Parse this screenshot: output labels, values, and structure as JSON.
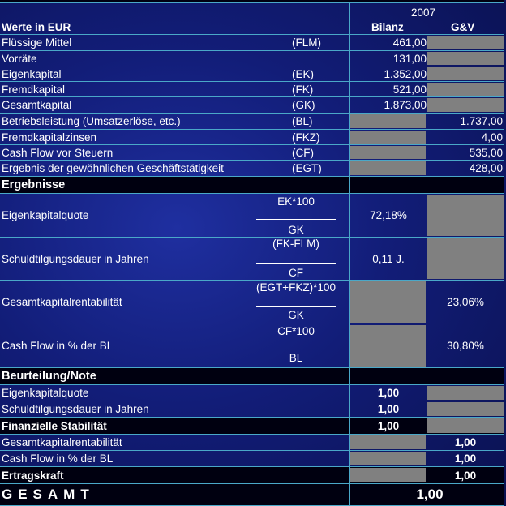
{
  "header": {
    "year": "2007",
    "units_label": "Werte in EUR",
    "col_bilanz": "Bilanz",
    "col_guv": "G&V"
  },
  "inputs": [
    {
      "label": "Flüssige Mittel",
      "abbr": "(FLM)",
      "bilanz": "461,00",
      "guv": ""
    },
    {
      "label": "Vorräte",
      "abbr": "",
      "bilanz": "131,00",
      "guv": ""
    },
    {
      "label": "Eigenkapital",
      "abbr": "(EK)",
      "bilanz": "1.352,00",
      "guv": ""
    },
    {
      "label": "Fremdkapital",
      "abbr": "(FK)",
      "bilanz": "521,00",
      "guv": ""
    },
    {
      "label": "Gesamtkapital",
      "abbr": "(GK)",
      "bilanz": "1.873,00",
      "guv": ""
    },
    {
      "label": "Betriebsleistung (Umsatzerlöse, etc.)",
      "abbr": "(BL)",
      "bilanz": "",
      "guv": "1.737,00"
    },
    {
      "label": "Fremdkapitalzinsen",
      "abbr": "(FKZ)",
      "bilanz": "",
      "guv": "4,00"
    },
    {
      "label": "Cash Flow vor Steuern",
      "abbr": "(CF)",
      "bilanz": "",
      "guv": "535,00"
    },
    {
      "label": "Ergebnis der gewöhnlichen Geschäftstätigkeit",
      "abbr": "(EGT)",
      "bilanz": "",
      "guv": "428,00"
    }
  ],
  "ergebnisse": {
    "title": "Ergebnisse",
    "rows": [
      {
        "label": "Eigenkapitalquote",
        "numerator": "EK*100",
        "denominator": "GK",
        "bilanz": "72,18%",
        "guv": ""
      },
      {
        "label": "Schuldtilgungsdauer in Jahren",
        "numerator": "(FK-FLM)",
        "denominator": "CF",
        "bilanz": "0,11 J.",
        "guv": ""
      },
      {
        "label": "Gesamtkapitalrentabilität",
        "numerator": "(EGT+FKZ)*100",
        "denominator": "GK",
        "bilanz": "",
        "guv": "23,06%"
      },
      {
        "label": "Cash Flow in % der BL",
        "numerator": "CF*100",
        "denominator": "BL",
        "bilanz": "",
        "guv": "30,80%"
      }
    ]
  },
  "beurteilung": {
    "title": "Beurteilung/Note",
    "rows": [
      {
        "label": "Eigenkapitalquote",
        "bilanz": "1,00",
        "guv": ""
      },
      {
        "label": "Schuldtilgungsdauer in Jahren",
        "bilanz": "1,00",
        "guv": ""
      },
      {
        "label": "Finanzielle Stabilität",
        "bilanz": "1,00",
        "guv": ""
      },
      {
        "label": "Gesamtkapitalrentabilität",
        "bilanz": "",
        "guv": "1,00"
      },
      {
        "label": "Cash Flow in % der BL",
        "bilanz": "",
        "guv": "1,00"
      },
      {
        "label": "Ertragskraft",
        "bilanz": "",
        "guv": "1,00"
      }
    ]
  },
  "gesamt": {
    "label": "GESAMT",
    "value": "1,00"
  },
  "colors": {
    "background": "#121d78",
    "grey_cell": "#808080",
    "grid_line": "#4aa8c8",
    "section_bg": "#000010"
  }
}
